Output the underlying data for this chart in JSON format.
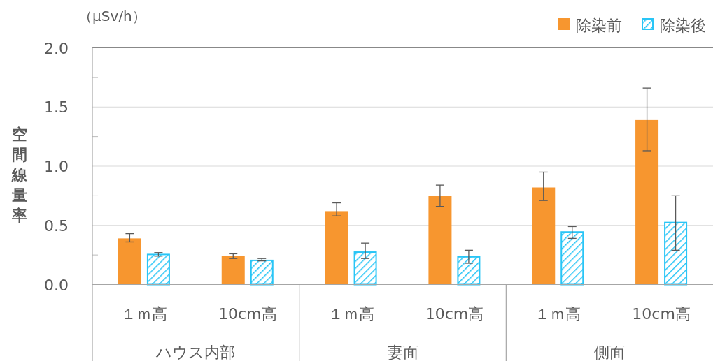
{
  "chart_data": {
    "type": "bar",
    "ylabel": "空間線量率",
    "annotations": [
      "（μSv/h）",
      "ハウス内部",
      "妻面",
      "側面"
    ],
    "categories": [
      "１ｍ高",
      "10cm高",
      "１ｍ高",
      "10cm高",
      "１ｍ高",
      "10cm高"
    ],
    "series": [
      {
        "name": "除染前",
        "color": "#f7962f",
        "values": [
          0.39,
          0.24,
          0.62,
          0.75,
          0.82,
          1.39
        ],
        "errors": [
          [
            0.36,
            0.43
          ],
          [
            0.22,
            0.26
          ],
          [
            0.58,
            0.69
          ],
          [
            0.66,
            0.84
          ],
          [
            0.71,
            0.95
          ],
          [
            1.13,
            1.66
          ]
        ]
      },
      {
        "name": "除染後",
        "color": "#29c5f6",
        "values": [
          0.26,
          0.21,
          0.28,
          0.24,
          0.45,
          0.53
        ],
        "errors": [
          [
            0.24,
            0.27
          ],
          [
            0.2,
            0.22
          ],
          [
            0.22,
            0.35
          ],
          [
            0.18,
            0.29
          ],
          [
            0.39,
            0.49
          ],
          [
            0.29,
            0.75
          ]
        ]
      }
    ],
    "ylim": [
      0,
      2
    ],
    "yticks": [
      {
        "value": 0,
        "label": "0.0"
      },
      {
        "value": 0.25,
        "label": null
      },
      {
        "value": 0.5,
        "label": "0.5"
      },
      {
        "value": 0.75,
        "label": null
      },
      {
        "value": 1,
        "label": "1.0"
      },
      {
        "value": 1.25,
        "label": null
      },
      {
        "value": 1.5,
        "label": "1.5"
      },
      {
        "value": 1.75,
        "label": null
      },
      {
        "value": 2,
        "label": "2.0"
      }
    ],
    "grid": "y",
    "legend": "top right"
  }
}
